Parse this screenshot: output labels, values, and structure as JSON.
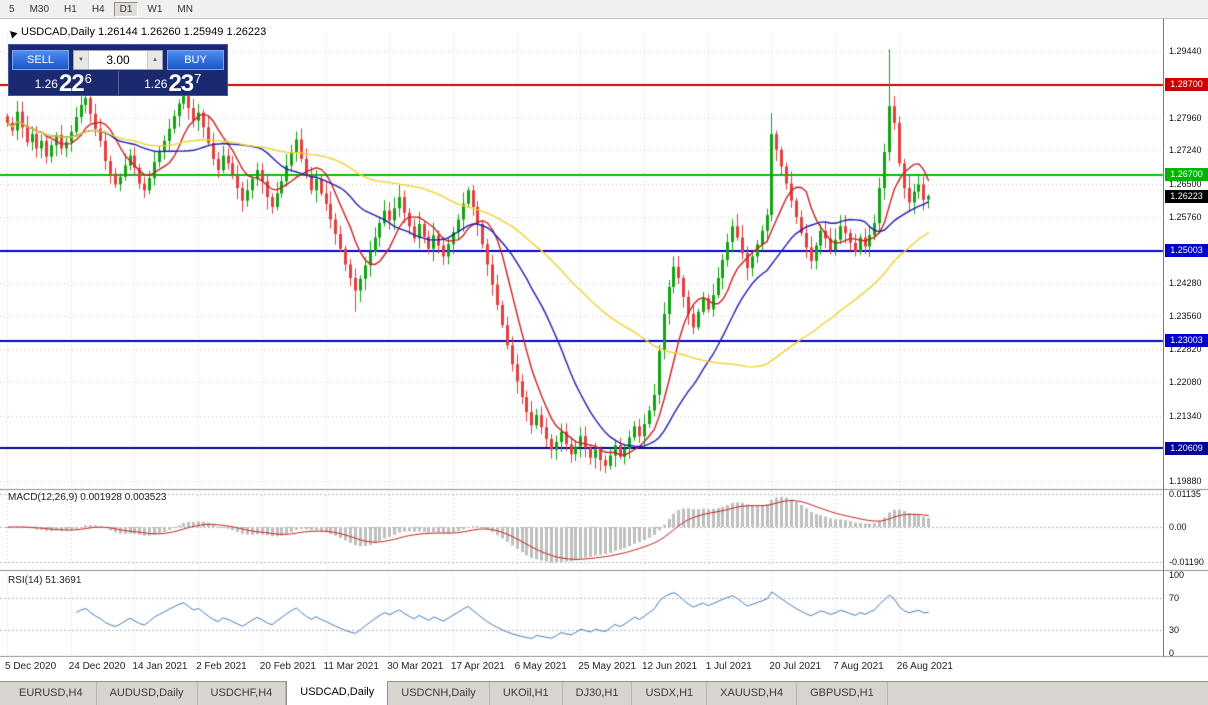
{
  "window": {
    "toolbar": {
      "items": [
        "5",
        "M30",
        "H1",
        "H4",
        "D1",
        "W1",
        "MN"
      ],
      "active": "D1"
    }
  },
  "header": {
    "text": "USDCAD,Daily 1.26144 1.26260 1.25949 1.26223"
  },
  "trade_panel": {
    "sell_label": "SELL",
    "buy_label": "BUY",
    "volume": "3.00",
    "sell_price": {
      "prefix": "1.26",
      "big": "22",
      "sup": "6"
    },
    "buy_price": {
      "prefix": "1.26",
      "big": "23",
      "sup": "7"
    }
  },
  "price_scale": {
    "ticks": [
      {
        "t": "1.29440",
        "p": 1.2944
      },
      {
        "t": "1.27960",
        "p": 1.2796
      },
      {
        "t": "1.27240",
        "p": 1.2724
      },
      {
        "t": "1.26500",
        "p": 1.265
      },
      {
        "t": "1.25760",
        "p": 1.2576
      },
      {
        "t": "1.24280",
        "p": 1.2428
      },
      {
        "t": "1.23560",
        "p": 1.2356
      },
      {
        "t": "1.22820",
        "p": 1.2282
      },
      {
        "t": "1.22080",
        "p": 1.2208
      },
      {
        "t": "1.21340",
        "p": 1.2134
      },
      {
        "t": "1.19880",
        "p": 1.1988
      }
    ],
    "badges": [
      {
        "t": "1.28700",
        "p": 1.287,
        "color": "#cc0000"
      },
      {
        "t": "1.26700",
        "p": 1.267,
        "color": "#00b400"
      },
      {
        "t": "1.26223",
        "p": 1.26223,
        "color": "#000000"
      },
      {
        "t": "1.25003",
        "p": 1.25003,
        "color": "#0000cc"
      },
      {
        "t": "1.23003",
        "p": 1.23003,
        "color": "#0000cc"
      },
      {
        "t": "1.20609",
        "p": 1.20609,
        "color": "#000099"
      }
    ]
  },
  "macd_panel": {
    "label": "MACD(12,26,9) 0.001928 0.003523",
    "ticks": [
      {
        "t": "0.01135",
        "v": 0.01135
      },
      {
        "t": "0.00",
        "v": 0
      },
      {
        "t": "-0.01190",
        "v": -0.0119
      }
    ]
  },
  "rsi_panel": {
    "label": "RSI(14) 51.3691",
    "ticks": [
      {
        "t": "100",
        "v": 100
      },
      {
        "t": "70",
        "v": 70
      },
      {
        "t": "30",
        "v": 30
      },
      {
        "t": "0",
        "v": 0
      }
    ],
    "levels": [
      70,
      30
    ]
  },
  "x_axis": {
    "labels": [
      {
        "t": "5 Dec 2020",
        "bar": 0
      },
      {
        "t": "24 Dec 2020",
        "bar": 13
      },
      {
        "t": "14 Jan 2021",
        "bar": 26
      },
      {
        "t": "2 Feb 2021",
        "bar": 39
      },
      {
        "t": "20 Feb 2021",
        "bar": 52
      },
      {
        "t": "11 Mar 2021",
        "bar": 65
      },
      {
        "t": "30 Mar 2021",
        "bar": 78
      },
      {
        "t": "17 Apr 2021",
        "bar": 91
      },
      {
        "t": "6 May 2021",
        "bar": 104
      },
      {
        "t": "25 May 2021",
        "bar": 117
      },
      {
        "t": "12 Jun 2021",
        "bar": 130
      },
      {
        "t": "1 Jul 2021",
        "bar": 143
      },
      {
        "t": "20 Jul 2021",
        "bar": 156
      },
      {
        "t": "7 Aug 2021",
        "bar": 169
      },
      {
        "t": "26 Aug 2021",
        "bar": 182
      }
    ]
  },
  "tabs": {
    "items": [
      "EURUSD,H4",
      "AUDUSD,Daily",
      "USDCHF,H4",
      "USDCAD,Daily",
      "USDCNH,Daily",
      "UKOil,H1",
      "DJ30,H1",
      "USDX,H1",
      "XAUUSD,H4",
      "GBPUSD,H1"
    ],
    "active": "USDCAD,Daily"
  },
  "chart_data": {
    "type": "candlestick",
    "symbol": "USDCAD",
    "timeframe": "Daily",
    "title": "USDCAD,Daily",
    "ohlc_display": {
      "open": "1.26144",
      "high": "1.26260",
      "low": "1.25949",
      "close": "1.26223"
    },
    "y_axis_range": [
      1.1975,
      1.2985
    ],
    "x_range_labels": [
      "5 Dec 2020",
      "26 Aug 2021"
    ],
    "first_open": 1.28,
    "closes": [
      1.2785,
      1.2768,
      1.281,
      1.2775,
      1.2742,
      1.276,
      1.2728,
      1.2745,
      1.271,
      1.2735,
      1.2758,
      1.2728,
      1.2742,
      1.2765,
      1.2798,
      1.2825,
      1.284,
      1.2805,
      1.2772,
      1.2745,
      1.27,
      1.2672,
      1.2648,
      1.2665,
      1.269,
      1.2712,
      1.2685,
      1.265,
      1.2635,
      1.2662,
      1.2698,
      1.272,
      1.2745,
      1.2772,
      1.28,
      1.2828,
      1.2845,
      1.2818,
      1.279,
      1.2808,
      1.2775,
      1.274,
      1.2705,
      1.268,
      1.2712,
      1.2695,
      1.2668,
      1.264,
      1.2612,
      1.2635,
      1.266,
      1.268,
      1.2655,
      1.262,
      1.2598,
      1.2628,
      1.2655,
      1.269,
      1.272,
      1.2748,
      1.2705,
      1.2668,
      1.2635,
      1.266,
      1.2628,
      1.2605,
      1.257,
      1.2538,
      1.2505,
      1.247,
      1.244,
      1.2412,
      1.2438,
      1.2468,
      1.2498,
      1.253,
      1.2562,
      1.259,
      1.2568,
      1.2595,
      1.262,
      1.2585,
      1.2555,
      1.2528,
      1.256,
      1.2532,
      1.2505,
      1.2535,
      1.2512,
      1.2488,
      1.2515,
      1.2542,
      1.257,
      1.2605,
      1.2635,
      1.2598,
      1.256,
      1.2515,
      1.247,
      1.2425,
      1.238,
      1.2335,
      1.229,
      1.2248,
      1.221,
      1.2175,
      1.2142,
      1.2112,
      1.2135,
      1.2108,
      1.2082,
      1.2058,
      1.2075,
      1.2098,
      1.207,
      1.2048,
      1.2065,
      1.2088,
      1.2062,
      1.204,
      1.2058,
      1.2035,
      1.2022,
      1.2045,
      1.2068,
      1.2042,
      1.206,
      1.2085,
      1.211,
      1.2088,
      1.2115,
      1.2145,
      1.218,
      1.2278,
      1.236,
      1.242,
      1.2465,
      1.244,
      1.2398,
      1.236,
      1.233,
      1.2365,
      1.2395,
      1.237,
      1.2402,
      1.244,
      1.248,
      1.252,
      1.2555,
      1.253,
      1.2495,
      1.2462,
      1.2488,
      1.2515,
      1.2545,
      1.258,
      1.276,
      1.2725,
      1.2688,
      1.265,
      1.2612,
      1.2575,
      1.254,
      1.2508,
      1.2478,
      1.2512,
      1.2545,
      1.2528,
      1.2502,
      1.2525,
      1.2555,
      1.254,
      1.2518,
      1.2498,
      1.253,
      1.251,
      1.2535,
      1.2562,
      1.264,
      1.272,
      1.2822,
      1.2785,
      1.2695,
      1.264,
      1.2608,
      1.2632,
      1.2648,
      1.2614,
      1.26223
    ],
    "overrides": {
      "36": {
        "h": 1.2881
      },
      "71": {
        "l": 1.2365
      },
      "122": {
        "l": 1.2006
      },
      "133": {
        "l": 1.216
      },
      "156": {
        "h": 1.2807
      },
      "180": {
        "h": 1.2949
      },
      "188": {
        "o": 1.26144,
        "h": 1.2626,
        "l": 1.25949,
        "c": 1.26223
      }
    },
    "up_color": "#12a312",
    "down_color": "#e04040",
    "horizontal_lines": [
      {
        "price": 1.287,
        "color": "#cc0000"
      },
      {
        "price": 1.267,
        "color": "#00c000"
      },
      {
        "price": 1.25003,
        "color": "#0000cc"
      },
      {
        "price": 1.23003,
        "color": "#0000cc"
      },
      {
        "price": 1.20609,
        "color": "#000099"
      }
    ],
    "moving_averages": [
      {
        "period": 8,
        "color": "#cc2222"
      },
      {
        "period": 20,
        "color": "#2020b0"
      },
      {
        "period": 55,
        "color": "#f2d22e"
      }
    ],
    "indicators": {
      "macd": {
        "fast": 12,
        "slow": 26,
        "signal": 9,
        "value": "0.001928",
        "signal_value": "0.003523",
        "histogram_color": "#bfbfbf",
        "signal_color": "#cc2222"
      },
      "rsi": {
        "period": 14,
        "value": "51.3691",
        "line_color": "#4a7ebb",
        "levels": [
          70,
          30
        ]
      }
    }
  }
}
